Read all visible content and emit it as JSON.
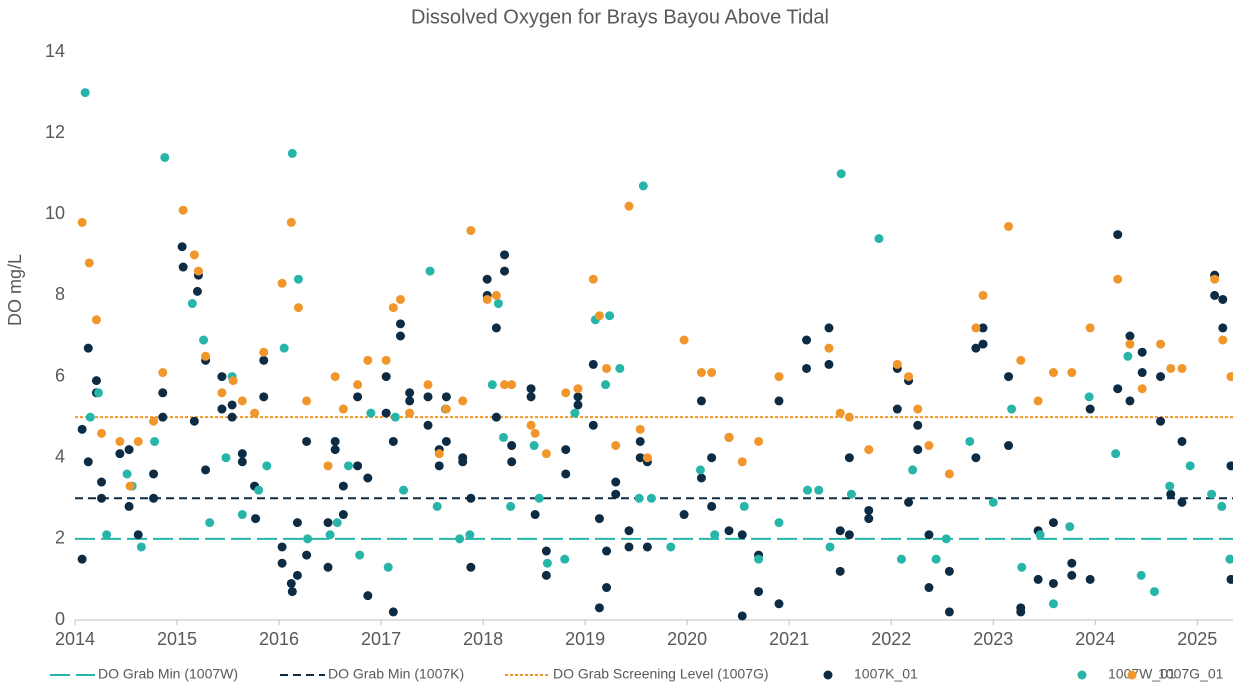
{
  "chart_data": {
    "type": "scatter",
    "title": "Dissolved Oxygen for Brays Bayou Above Tidal",
    "y_label": "DO mg/L",
    "xlim": [
      2014,
      2025.35
    ],
    "xticks": [
      2014,
      2015,
      2016,
      2017,
      2018,
      2019,
      2020,
      2021,
      2022,
      2023,
      2024,
      2025
    ],
    "ylim": [
      0,
      14
    ],
    "yticks": [
      0,
      2,
      4,
      6,
      8,
      10,
      12,
      14
    ],
    "grid": false,
    "legend": "bottom",
    "reference_lines": [
      {
        "name": "DO Grab Min (1007W)",
        "value": 2,
        "color": "#26b5a8",
        "style": "longdash"
      },
      {
        "name": "DO Grab Min (1007K)",
        "value": 3,
        "color": "#0d2c44",
        "style": "dash"
      },
      {
        "name": "DO Grab Screening Level (1007G)",
        "value": 5,
        "color": "#f0962b",
        "style": "dot"
      }
    ],
    "series": [
      {
        "name": "1007K_01",
        "color": "#0d2c44",
        "x": [
          2014.07,
          2014.07,
          2014.13,
          2014.13,
          2014.21,
          2014.21,
          2014.26,
          2014.26,
          2014.44,
          2014.53,
          2014.53,
          2014.62,
          2014.77,
          2014.77,
          2014.86,
          2014.86,
          2015.05,
          2015.06,
          2015.17,
          2015.2,
          2015.21,
          2015.28,
          2015.28,
          2015.44,
          2015.44,
          2015.54,
          2015.54,
          2015.64,
          2015.64,
          2015.76,
          2015.77,
          2015.85,
          2015.85,
          2016.03,
          2016.03,
          2016.12,
          2016.13,
          2016.18,
          2016.18,
          2016.27,
          2016.27,
          2016.48,
          2016.48,
          2016.55,
          2016.55,
          2016.63,
          2016.63,
          2016.77,
          2016.77,
          2016.87,
          2016.87,
          2017.05,
          2017.05,
          2017.12,
          2017.12,
          2017.19,
          2017.19,
          2017.28,
          2017.28,
          2017.46,
          2017.46,
          2017.57,
          2017.57,
          2017.64,
          2017.64,
          2017.8,
          2017.8,
          2017.88,
          2017.88,
          2018.04,
          2018.04,
          2018.13,
          2018.13,
          2018.21,
          2018.21,
          2018.28,
          2018.28,
          2018.47,
          2018.47,
          2018.51,
          2018.62,
          2018.62,
          2018.81,
          2018.81,
          2018.93,
          2018.93,
          2019.08,
          2019.08,
          2019.14,
          2019.14,
          2019.21,
          2019.21,
          2019.3,
          2019.3,
          2019.43,
          2019.43,
          2019.54,
          2019.54,
          2019.61,
          2019.61,
          2019.97,
          2020.14,
          2020.14,
          2020.24,
          2020.24,
          2020.41,
          2020.41,
          2020.54,
          2020.54,
          2020.7,
          2020.7,
          2020.9,
          2020.9,
          2021.17,
          2021.17,
          2021.39,
          2021.39,
          2021.5,
          2021.5,
          2021.59,
          2021.59,
          2021.78,
          2021.78,
          2022.06,
          2022.06,
          2022.17,
          2022.17,
          2022.26,
          2022.26,
          2022.37,
          2022.37,
          2022.57,
          2022.57,
          2022.83,
          2022.83,
          2022.9,
          2022.9,
          2023.15,
          2023.15,
          2023.27,
          2023.27,
          2023.44,
          2023.44,
          2023.59,
          2023.59,
          2023.77,
          2023.77,
          2023.95,
          2023.95,
          2024.22,
          2024.22,
          2024.34,
          2024.34,
          2024.46,
          2024.46,
          2024.64,
          2024.64,
          2024.74,
          2024.85,
          2024.85,
          2025.17,
          2025.17,
          2025.25,
          2025.25,
          2025.33,
          2025.33
        ],
        "values": [
          1.5,
          4.7,
          6.7,
          3.9,
          5.9,
          5.6,
          3.4,
          3.0,
          4.1,
          4.2,
          2.8,
          2.1,
          3.6,
          3.0,
          5.6,
          5.0,
          9.2,
          8.7,
          4.9,
          8.1,
          8.5,
          6.4,
          3.7,
          6.0,
          5.2,
          5.3,
          5.0,
          4.1,
          3.9,
          3.3,
          2.5,
          5.5,
          6.4,
          1.8,
          1.4,
          0.9,
          0.7,
          2.4,
          1.1,
          4.4,
          1.6,
          2.4,
          1.3,
          4.4,
          4.2,
          3.3,
          2.6,
          5.5,
          3.8,
          3.5,
          0.6,
          6.0,
          5.1,
          4.4,
          0.2,
          7.3,
          7.0,
          5.6,
          5.4,
          5.5,
          4.8,
          4.2,
          3.8,
          5.5,
          4.4,
          4.0,
          3.9,
          3.0,
          1.3,
          8.4,
          8.0,
          7.2,
          5.0,
          9.0,
          8.6,
          4.3,
          3.9,
          5.7,
          5.5,
          2.6,
          1.7,
          1.1,
          4.2,
          3.6,
          5.5,
          5.3,
          6.3,
          4.8,
          2.5,
          0.3,
          1.7,
          0.8,
          3.4,
          3.1,
          2.2,
          1.8,
          4.4,
          4.0,
          3.9,
          1.8,
          2.6,
          5.4,
          3.5,
          4.0,
          2.8,
          4.5,
          2.2,
          2.1,
          0.1,
          1.6,
          0.7,
          5.4,
          0.4,
          6.2,
          6.9,
          7.2,
          6.3,
          2.2,
          1.2,
          4.0,
          2.1,
          2.7,
          2.5,
          6.2,
          5.2,
          5.9,
          2.9,
          4.8,
          4.2,
          2.1,
          0.8,
          1.2,
          0.2,
          6.7,
          4.0,
          7.2,
          6.8,
          6.0,
          4.3,
          0.3,
          0.2,
          2.2,
          1.0,
          2.4,
          0.9,
          1.4,
          1.1,
          5.2,
          1.0,
          9.5,
          5.7,
          7.0,
          5.4,
          6.6,
          6.1,
          6.0,
          4.9,
          3.1,
          4.4,
          2.9,
          8.5,
          8.0,
          7.9,
          7.2,
          3.8,
          1.0
        ]
      },
      {
        "name": "1007W_01",
        "color": "#26b5a8",
        "x": [
          2014.1,
          2014.15,
          2014.23,
          2014.31,
          2014.51,
          2014.56,
          2014.65,
          2014.78,
          2014.88,
          2015.15,
          2015.26,
          2015.32,
          2015.48,
          2015.54,
          2015.64,
          2015.8,
          2015.88,
          2016.05,
          2016.13,
          2016.19,
          2016.28,
          2016.5,
          2016.57,
          2016.68,
          2016.79,
          2016.9,
          2017.07,
          2017.14,
          2017.22,
          2017.48,
          2017.55,
          2017.63,
          2017.77,
          2017.87,
          2018.09,
          2018.15,
          2018.2,
          2018.27,
          2018.5,
          2018.55,
          2018.63,
          2018.8,
          2018.9,
          2019.1,
          2019.2,
          2019.24,
          2019.34,
          2019.53,
          2019.57,
          2019.65,
          2019.84,
          2020.13,
          2020.27,
          2020.56,
          2020.7,
          2020.9,
          2021.18,
          2021.29,
          2021.4,
          2021.51,
          2021.61,
          2021.88,
          2022.1,
          2022.21,
          2022.44,
          2022.54,
          2022.77,
          2023.0,
          2023.18,
          2023.28,
          2023.46,
          2023.59,
          2023.75,
          2023.94,
          2024.2,
          2024.32,
          2024.45,
          2024.58,
          2024.73,
          2024.93,
          2025.14,
          2025.24,
          2025.32
        ],
        "values": [
          13.0,
          5.0,
          5.6,
          2.1,
          3.6,
          3.3,
          1.8,
          4.4,
          11.4,
          7.8,
          6.9,
          2.4,
          4.0,
          6.0,
          2.6,
          3.2,
          3.8,
          6.7,
          11.5,
          8.4,
          2.0,
          2.1,
          2.4,
          3.8,
          1.6,
          5.1,
          1.3,
          5.0,
          3.2,
          8.6,
          2.8,
          5.2,
          2.0,
          2.1,
          5.8,
          7.8,
          4.5,
          2.8,
          4.3,
          3.0,
          1.4,
          1.5,
          5.1,
          7.4,
          5.8,
          7.5,
          6.2,
          3.0,
          10.7,
          3.0,
          1.8,
          3.7,
          2.1,
          2.8,
          1.5,
          2.4,
          3.2,
          3.2,
          1.8,
          11.0,
          3.1,
          9.4,
          1.5,
          3.7,
          1.5,
          2.0,
          4.4,
          2.9,
          5.2,
          1.3,
          2.1,
          0.4,
          2.3,
          5.5,
          4.1,
          6.5,
          1.1,
          0.7,
          3.3,
          3.8,
          3.1,
          2.8,
          1.5
        ]
      },
      {
        "name": "1007G_01",
        "color": "#f0962b",
        "x": [
          2014.07,
          2014.14,
          2014.21,
          2014.26,
          2014.44,
          2014.54,
          2014.62,
          2014.77,
          2014.86,
          2015.06,
          2015.17,
          2015.21,
          2015.28,
          2015.44,
          2015.55,
          2015.64,
          2015.76,
          2015.85,
          2016.03,
          2016.12,
          2016.19,
          2016.27,
          2016.48,
          2016.55,
          2016.63,
          2016.77,
          2016.87,
          2017.05,
          2017.12,
          2017.19,
          2017.28,
          2017.46,
          2017.57,
          2017.64,
          2017.8,
          2017.88,
          2018.04,
          2018.13,
          2018.21,
          2018.28,
          2018.47,
          2018.51,
          2018.62,
          2018.81,
          2018.93,
          2019.08,
          2019.14,
          2019.21,
          2019.3,
          2019.43,
          2019.54,
          2019.61,
          2019.97,
          2020.14,
          2020.24,
          2020.41,
          2020.54,
          2020.7,
          2020.9,
          2021.39,
          2021.5,
          2021.59,
          2021.78,
          2022.06,
          2022.17,
          2022.26,
          2022.37,
          2022.57,
          2022.83,
          2022.9,
          2023.15,
          2023.27,
          2023.44,
          2023.59,
          2023.77,
          2023.95,
          2024.22,
          2024.34,
          2024.46,
          2024.64,
          2024.74,
          2024.85,
          2025.17,
          2025.25,
          2025.33
        ],
        "values": [
          9.8,
          8.8,
          7.4,
          4.6,
          4.4,
          3.3,
          4.4,
          4.9,
          6.1,
          10.1,
          9.0,
          8.6,
          6.5,
          5.6,
          5.9,
          5.4,
          5.1,
          6.6,
          8.3,
          9.8,
          7.7,
          5.4,
          3.8,
          6.0,
          5.2,
          5.8,
          6.4,
          6.4,
          7.7,
          7.9,
          5.1,
          5.8,
          4.1,
          5.2,
          5.4,
          9.6,
          7.9,
          8.0,
          5.8,
          5.8,
          4.8,
          4.6,
          4.1,
          5.6,
          5.7,
          8.4,
          7.5,
          6.2,
          4.3,
          10.2,
          4.7,
          4.0,
          6.9,
          6.1,
          6.1,
          4.5,
          3.9,
          4.4,
          6.0,
          6.7,
          5.1,
          5.0,
          4.2,
          6.3,
          6.0,
          5.2,
          4.3,
          3.6,
          7.2,
          8.0,
          9.7,
          6.4,
          5.4,
          6.1,
          6.1,
          7.2,
          8.4,
          6.8,
          5.7,
          6.8,
          6.2,
          6.2,
          8.4,
          6.9,
          6.0
        ]
      }
    ]
  }
}
